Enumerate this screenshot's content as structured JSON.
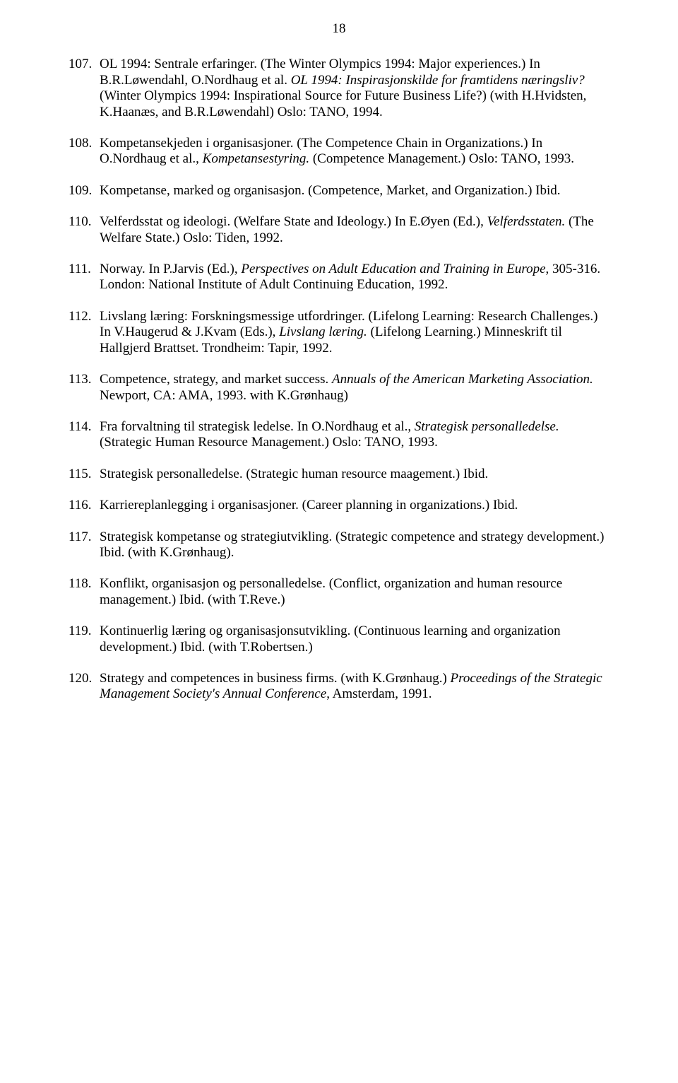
{
  "page_number": "18",
  "entries": [
    {
      "num": "107.",
      "segments": [
        {
          "t": "OL 1994: Sentrale erfaringer. (The Winter Olympics 1994: Major experiences.) In B.R.Løwendahl, O.Nordhaug et al. ",
          "i": false
        },
        {
          "t": "OL 1994: Inspirasjonskilde for framtidens næringsliv?",
          "i": true
        },
        {
          "t": " (Winter Olympics 1994: Inspirational Source for Future Business Life?) (with H.Hvidsten, K.Haanæs, and B.R.Løwendahl) Oslo: TANO, 1994.",
          "i": false
        }
      ]
    },
    {
      "num": "108.",
      "segments": [
        {
          "t": "Kompetansekjeden i organisasjoner. (The Competence Chain in Organizations.) In O.Nordhaug et al., ",
          "i": false
        },
        {
          "t": "Kompetansestyring.",
          "i": true
        },
        {
          "t": " (Competence Management.)  Oslo: TANO, 1993.",
          "i": false
        }
      ]
    },
    {
      "num": "109.",
      "segments": [
        {
          "t": "Kompetanse, marked og organisasjon. (Competence, Market, and Organization.) Ibid.",
          "i": false
        }
      ]
    },
    {
      "num": "110.",
      "segments": [
        {
          "t": "Velferdsstat og ideologi. (Welfare State and Ideology.) In E.Øyen (Ed.), ",
          "i": false
        },
        {
          "t": "Velferdsstaten.",
          "i": true
        },
        {
          "t": " (The Welfare State.) Oslo: Tiden, 1992.",
          "i": false
        }
      ]
    },
    {
      "num": "111.",
      "segments": [
        {
          "t": "Norway. In P.Jarvis (Ed.), ",
          "i": false
        },
        {
          "t": "Perspectives on Adult Education and Training in Europe",
          "i": true
        },
        {
          "t": ", 305-316. London: National Institute of Adult Continuing Education, 1992.",
          "i": false
        }
      ]
    },
    {
      "num": "112.",
      "segments": [
        {
          "t": "Livslang læring: Forskningsmessige utfordringer. (Lifelong Learning: Research Challenges.) In V.Haugerud & J.Kvam (Eds.), ",
          "i": false
        },
        {
          "t": "Livslang læring.",
          "i": true
        },
        {
          "t": " (Lifelong Learning.) Minneskrift til Hallgjerd Brattset. Trondheim: Tapir, 1992.",
          "i": false
        }
      ]
    },
    {
      "num": "113.",
      "segments": [
        {
          "t": "Competence, strategy, and market success. ",
          "i": false
        },
        {
          "t": "Annuals of the American Marketing Association.",
          "i": true
        },
        {
          "t": " Newport, CA: AMA, 1993. with K.Grønhaug)",
          "i": false
        }
      ]
    },
    {
      "num": "114.",
      "segments": [
        {
          "t": "Fra forvaltning til strategisk ledelse. In O.Nordhaug et al.,  ",
          "i": false
        },
        {
          "t": "Strategisk personalledelse.",
          "i": true
        },
        {
          "t": " (Strategic Human Resource Management.) Oslo: TANO, 1993.",
          "i": false
        }
      ]
    },
    {
      "num": "115.",
      "segments": [
        {
          "t": "Strategisk personalledelse. (Strategic human resource maagement.) Ibid.",
          "i": false
        }
      ]
    },
    {
      "num": "116.",
      "segments": [
        {
          "t": "Karriereplanlegging i organisasjoner. (Career planning in organizations.) Ibid.",
          "i": false
        }
      ]
    },
    {
      "num": "117.",
      "segments": [
        {
          "t": "Strategisk kompetanse og strategiutvikling. (Strategic competence and strategy development.) Ibid. (with K.Grønhaug).",
          "i": false
        }
      ]
    },
    {
      "num": "118.",
      "segments": [
        {
          "t": "Konflikt, organisasjon og personalledelse. (Conflict, organization and human resource management.) Ibid. (with T.Reve.)",
          "i": false
        }
      ]
    },
    {
      "num": "119.",
      "segments": [
        {
          "t": "Kontinuerlig læring og organisasjonsutvikling. (Continuous learning and organization development.) Ibid. (with T.Robertsen.)",
          "i": false
        }
      ]
    },
    {
      "num": "120.",
      "segments": [
        {
          "t": "Strategy and competences in business firms. (with K.Grønhaug.) ",
          "i": false
        },
        {
          "t": "Proceedings of the  Strategic Management Society's Annual Conference",
          "i": true
        },
        {
          "t": ", Amsterdam, 1991.",
          "i": false
        }
      ]
    }
  ]
}
